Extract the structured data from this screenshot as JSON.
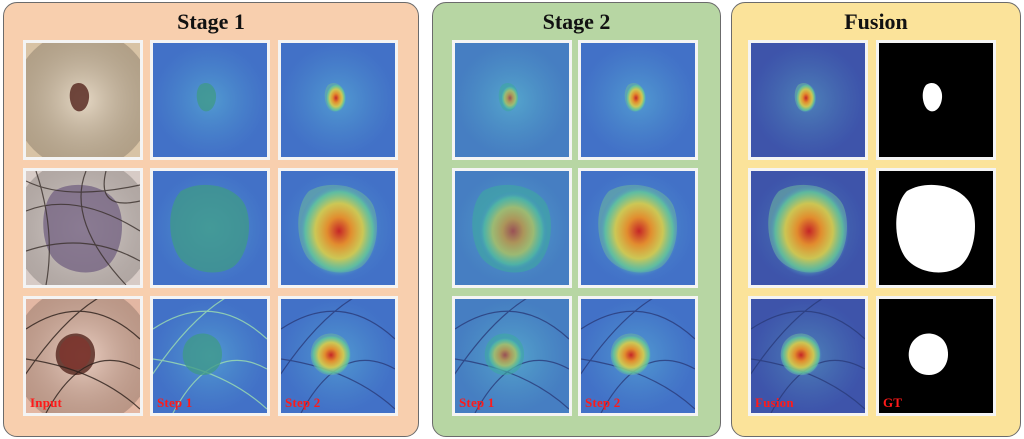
{
  "figure": {
    "panels": [
      {
        "title": "Stage 1",
        "bg": "#f8cfae",
        "columns": [
          {
            "label": "Input",
            "kind": "skin"
          },
          {
            "label": "Step 1",
            "kind": "map-flat"
          },
          {
            "label": "Step 2",
            "kind": "map-focus"
          }
        ]
      },
      {
        "title": "Stage 2",
        "bg": "#b7d6a3",
        "columns": [
          {
            "label": "Step 1",
            "kind": "map-soft"
          },
          {
            "label": "Step 2",
            "kind": "map-focus"
          }
        ]
      },
      {
        "title": "Fusion",
        "bg": "#fbe39a",
        "columns": [
          {
            "label": "Fusion",
            "kind": "map-fusion"
          },
          {
            "label": "GT",
            "kind": "mask"
          }
        ]
      }
    ],
    "label_color": "#ff1a1a"
  }
}
